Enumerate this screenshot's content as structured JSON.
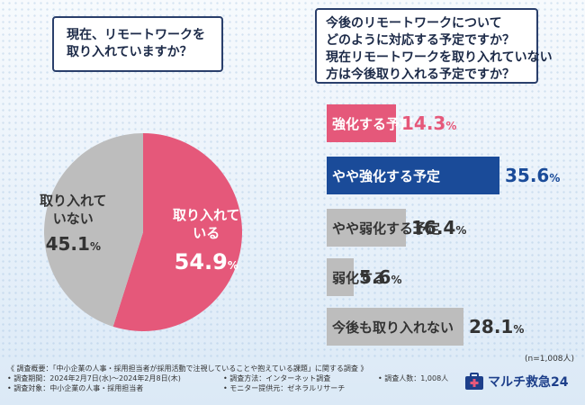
{
  "colors": {
    "pink": "#e5587a",
    "navy": "#1a4b99",
    "gray": "#bdbdbd",
    "gray_text": "#333333",
    "border": "#2a3f6b",
    "logo_blue": "#1d3f8a"
  },
  "left_question": {
    "lines": [
      "現在、リモートワークを",
      "取り入れていますか？"
    ]
  },
  "right_question": {
    "lines": [
      "今後のリモートワークについて",
      "どのように対応する予定ですか？",
      "現在リモートワークを取り入れていない",
      "方は今後取り入れる予定ですか？"
    ]
  },
  "chart_data": [
    {
      "type": "pie",
      "title": "現在、リモートワークを取り入れていますか？",
      "slices": [
        {
          "label_lines": [
            "取り入れて",
            "いる"
          ],
          "value": 54.9,
          "value_main": "54.9",
          "unit": "%",
          "color": "#e5587a"
        },
        {
          "label_lines": [
            "取り入れて",
            "いない"
          ],
          "value": 45.1,
          "value_main": "45.1",
          "unit": "%",
          "color": "#bdbdbd"
        }
      ]
    },
    {
      "type": "bar",
      "orientation": "horizontal",
      "title": "今後のリモートワークについてどのように対応する予定ですか？",
      "categories": [
        "強化する予定",
        "やや強化する予定",
        "やや弱化する予定",
        "弱化する",
        "今後も取り入れない"
      ],
      "values": [
        14.3,
        35.6,
        16.4,
        5.6,
        28.1
      ],
      "unit": "%",
      "bar_colors": [
        "#e5587a",
        "#1a4b99",
        "#bdbdbd",
        "#bdbdbd",
        "#bdbdbd"
      ],
      "value_colors": [
        "#e5587a",
        "#1a4b99",
        "#333333",
        "#333333",
        "#333333"
      ],
      "label_colors": [
        "#ffffff",
        "#ffffff",
        "#333333",
        "#333333",
        "#333333"
      ],
      "sample": "(n=1,008人)"
    }
  ],
  "footer": {
    "overview": "《 調査概要：「中小企業の人事・採用担当者が採用活動で注視していることや抱えている課題」に関する調査 》",
    "period": "• 調査期間：2024年2月7日(水)～2024年2月8日(木)",
    "method": "• 調査方法：インターネット調査",
    "count": "• 調査人数：1,008人",
    "target": "• 調査対象：中小企業の人事・採用担当者",
    "provider": "• モニター提供元：ゼネラルリサーチ"
  },
  "logo": {
    "text": "マルチ救急24",
    "icon": "briefcase-cross-icon"
  }
}
